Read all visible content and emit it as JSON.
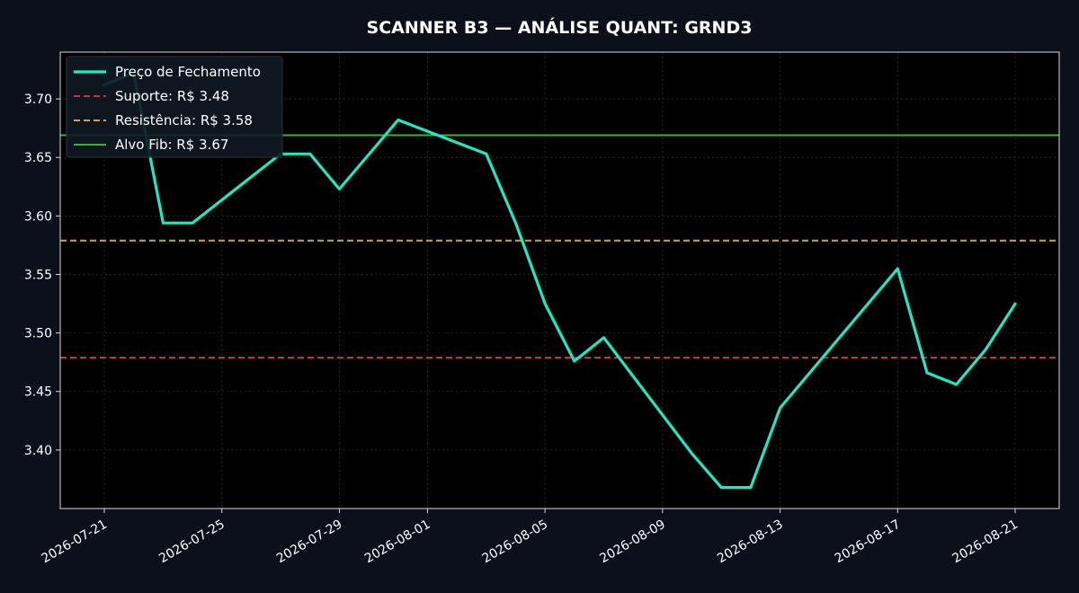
{
  "chart_data": {
    "type": "line",
    "title": "SCANNER B3 — ANÁLISE QUANT: GRND3",
    "xlabel": "",
    "ylabel": "",
    "x_ticks": [
      "2026-07-21",
      "2026-07-25",
      "2026-07-29",
      "2026-08-01",
      "2026-08-05",
      "2026-08-09",
      "2026-08-13",
      "2026-08-17",
      "2026-08-21"
    ],
    "y_ticks": [
      "3.40",
      "3.45",
      "3.50",
      "3.55",
      "3.60",
      "3.65",
      "3.70"
    ],
    "ylim": [
      3.35,
      3.74
    ],
    "xlim": [
      "2026-07-19 12:00",
      "2026-08-22 12:00"
    ],
    "grid": true,
    "legend_position": "top-left",
    "series": [
      {
        "name": "Preço de Fechamento",
        "color": "#1de9c3",
        "points": [
          {
            "x": "2026-07-21",
            "y": 3.712
          },
          {
            "x": "2026-07-22",
            "y": 3.722
          },
          {
            "x": "2026-07-23",
            "y": 3.594
          },
          {
            "x": "2026-07-24",
            "y": 3.594
          },
          {
            "x": "2026-07-27",
            "y": 3.653
          },
          {
            "x": "2026-07-28",
            "y": 3.653
          },
          {
            "x": "2026-07-29",
            "y": 3.623
          },
          {
            "x": "2026-07-31",
            "y": 3.682
          },
          {
            "x": "2026-08-03",
            "y": 3.653
          },
          {
            "x": "2026-08-04",
            "y": 3.594
          },
          {
            "x": "2026-08-05",
            "y": 3.525
          },
          {
            "x": "2026-08-06",
            "y": 3.476
          },
          {
            "x": "2026-08-07",
            "y": 3.496
          },
          {
            "x": "2026-08-10",
            "y": 3.397
          },
          {
            "x": "2026-08-11",
            "y": 3.368
          },
          {
            "x": "2026-08-12",
            "y": 3.368
          },
          {
            "x": "2026-08-13",
            "y": 3.436
          },
          {
            "x": "2026-08-17",
            "y": 3.555
          },
          {
            "x": "2026-08-18",
            "y": 3.466
          },
          {
            "x": "2026-08-19",
            "y": 3.456
          },
          {
            "x": "2026-08-20",
            "y": 3.486
          },
          {
            "x": "2026-08-21",
            "y": 3.525
          }
        ]
      }
    ],
    "reference_lines": [
      {
        "name": "Suporte: R$ 3.48",
        "y": 3.479,
        "color": "#c9323c",
        "style": "dashed"
      },
      {
        "name": "Resistência: R$ 3.58",
        "y": 3.579,
        "color": "#d4a431",
        "style": "dashed"
      },
      {
        "name": "Alvo Fib: R$ 3.67",
        "y": 3.669,
        "color": "#34b33a",
        "style": "solid"
      }
    ]
  }
}
